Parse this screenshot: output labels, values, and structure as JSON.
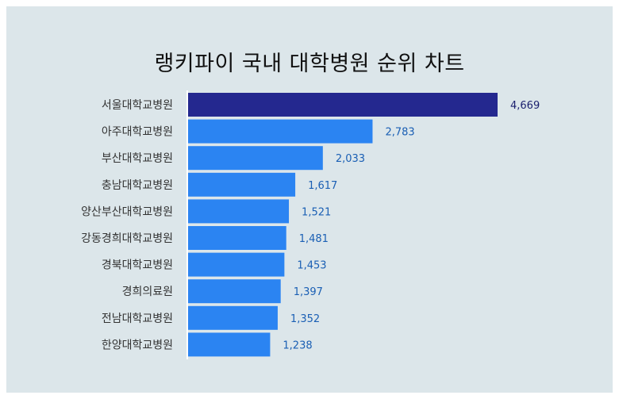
{
  "chart_data": {
    "type": "bar",
    "orientation": "horizontal",
    "title": "랭키파이 국내 대학병원 순위 차트",
    "categories": [
      "서울대학교병원",
      "아주대학교병원",
      "부산대학교병원",
      "충남대학교병원",
      "양산부산대학교병원",
      "강동경희대학교병원",
      "경북대학교병원",
      "경희의료원",
      "전남대학교병원",
      "한양대학교병원"
    ],
    "values": [
      4669,
      2783,
      2033,
      1617,
      1521,
      1481,
      1453,
      1397,
      1352,
      1238
    ],
    "value_labels": [
      "4,669",
      "2,783",
      "2,033",
      "1,617",
      "1,521",
      "1,481",
      "1,453",
      "1,397",
      "1,352",
      "1,238"
    ],
    "xlabel": "",
    "ylabel": "",
    "grid": false,
    "legend": "none",
    "colors": {
      "highlight_bar": "#24288f",
      "bar": "#2b84f2",
      "highlight_label": "#1a1f6e",
      "label": "#1a5fb4",
      "axis": "#ffffff"
    }
  }
}
